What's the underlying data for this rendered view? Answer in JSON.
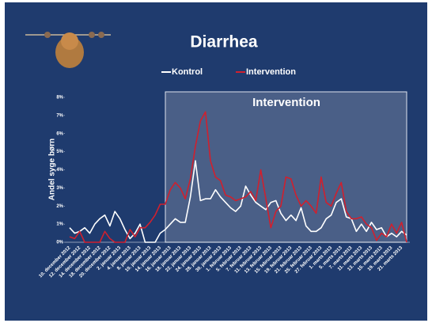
{
  "chart_data": {
    "type": "line",
    "title": "Diarrhea",
    "y_label": "Andel syge børn",
    "annotation": "Intervention",
    "categories": [
      "10. december 2012",
      null,
      "12. december 2012",
      null,
      "14. december 2012",
      null,
      "18. december 2012",
      null,
      "20. december 2012",
      null,
      "2. januar 2013",
      null,
      "4. januar 2013",
      null,
      "8. januar 2013",
      null,
      "10. januar 2013",
      null,
      "14. januar 2013",
      null,
      "16. januar 2013",
      null,
      "18. januar 2013",
      null,
      "22. januar 2013",
      null,
      "24. januar 2013",
      null,
      "28. januar 2013",
      null,
      "30. januar 2013",
      null,
      "1. februar 2013",
      null,
      "5. februar 2013",
      null,
      "7. februar 2013",
      null,
      "11. februar 2013",
      null,
      "13. februar 2013",
      null,
      "15. februar 2013",
      null,
      "19. februar 2013",
      null,
      "21. februar 2013",
      null,
      "25. februar 2013",
      null,
      "27. februar 2013",
      null,
      "1. marts 2013",
      null,
      "5. marts 2013",
      null,
      "7. marts 2013",
      null,
      "11. marts 2013",
      null,
      "13. marts 2013",
      null,
      "15. marts 2013",
      null,
      "19. marts 2013",
      null,
      "21. marts 2013",
      null
    ],
    "series": [
      {
        "name": "Kontrol",
        "color": "#ffffff",
        "values": [
          0.8,
          0.5,
          0.6,
          0.8,
          0.5,
          1.0,
          1.3,
          1.5,
          0.9,
          1.7,
          1.3,
          0.7,
          0.2,
          0.5,
          1.0,
          0,
          0,
          0,
          0.5,
          0.7,
          1.0,
          1.3,
          1.1,
          1.1,
          2.5,
          4.5,
          2.3,
          2.4,
          2.4,
          2.9,
          2.5,
          2.2,
          1.9,
          1.7,
          2.0,
          3.1,
          2.6,
          2.2,
          2.0,
          1.8,
          2.2,
          2.3,
          1.6,
          1.2,
          1.5,
          1.2,
          1.9,
          0.9,
          0.6,
          0.6,
          0.8,
          1.3,
          1.5,
          2.2,
          2.4,
          1.4,
          1.3,
          0.6,
          1.0,
          0.6,
          1.1,
          0.7,
          0.8,
          0.3,
          0.5,
          0.3,
          0.6,
          0.4
        ]
      },
      {
        "name": "Intervention",
        "color": "#d0202e",
        "values": [
          0.3,
          0.2,
          0.6,
          0,
          0,
          0,
          0,
          0.6,
          0.2,
          0,
          0,
          0,
          0.7,
          0.3,
          0.8,
          0.8,
          1.1,
          1.5,
          2.1,
          2.1,
          2.9,
          3.3,
          3.0,
          2.4,
          3.5,
          5.3,
          6.7,
          7.2,
          4.5,
          3.6,
          3.4,
          2.6,
          2.5,
          2.3,
          2.4,
          2.5,
          2.8,
          2.3,
          4.0,
          2.4,
          0.8,
          1.7,
          2.0,
          3.6,
          3.5,
          2.6,
          2.0,
          2.3,
          2.0,
          1.6,
          3.6,
          2.2,
          2.0,
          2.7,
          3.3,
          1.7,
          1.3,
          1.3,
          1.4,
          1.0,
          0.8,
          0.1,
          0.5,
          0.3,
          1.0,
          0.5,
          1.1,
          0.0
        ]
      }
    ],
    "ylim": [
      0,
      8
    ],
    "yticks": [
      {
        "value": 0,
        "label": "0%"
      },
      {
        "value": 1,
        "label": "1%"
      },
      {
        "value": 2,
        "label": "2%"
      },
      {
        "value": 3,
        "label": "3%"
      },
      {
        "value": 4,
        "label": "4%"
      },
      {
        "value": 5,
        "label": "5%"
      },
      {
        "value": 6,
        "label": "6%"
      },
      {
        "value": 7,
        "label": "7%"
      },
      {
        "value": 8,
        "label": "8%"
      }
    ]
  }
}
